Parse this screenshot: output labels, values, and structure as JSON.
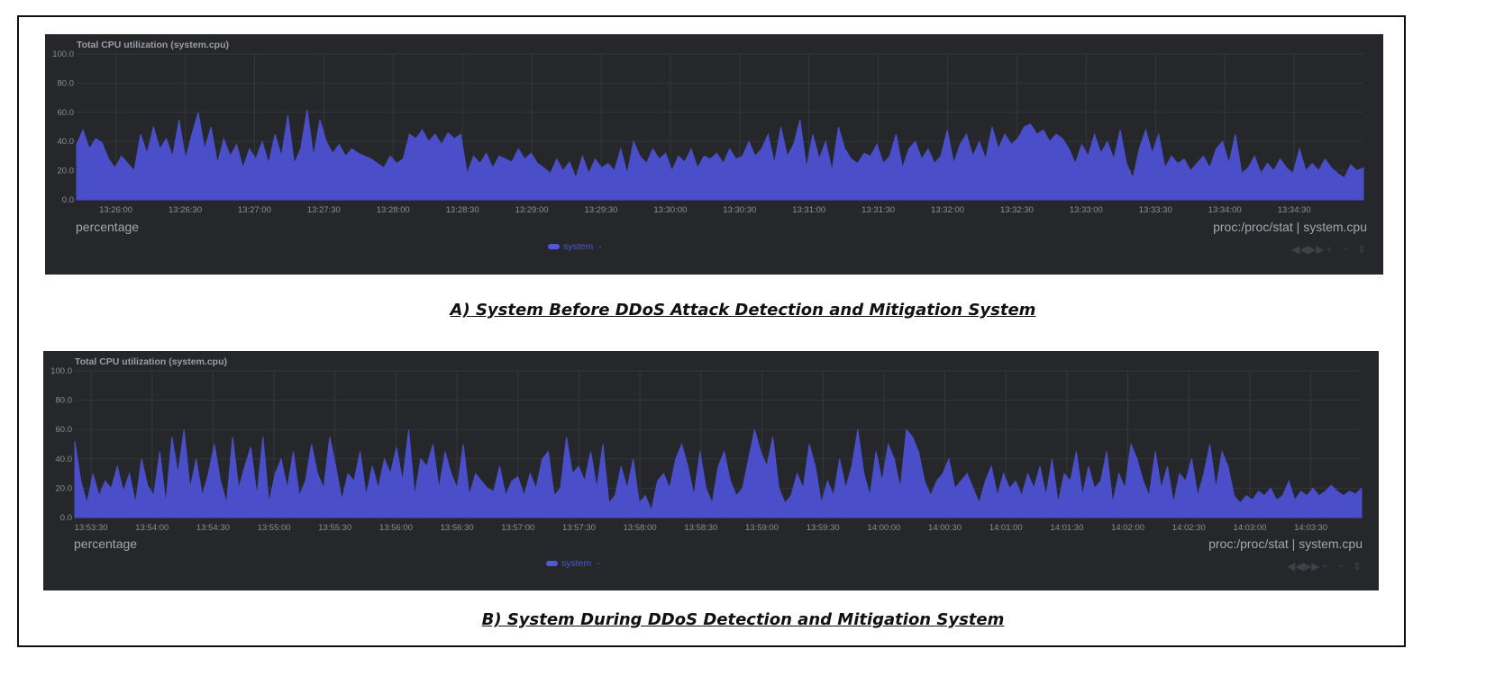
{
  "captions": {
    "a": "A)  System Before DDoS Attack Detection and Mitigation System",
    "b": "B) System During DDoS Detection and Mitigation System"
  },
  "colors": {
    "panel_bg": "#25272b",
    "series": "#4a4fc9",
    "text": "#a3a7ad",
    "grid": "#34373c"
  },
  "controls_icons": [
    "rewind-icon",
    "fast-forward-icon",
    "zoom-in-icon",
    "zoom-out-icon",
    "resize-icon"
  ],
  "chart_data": [
    {
      "type": "area",
      "title": "Total CPU utilization (system.cpu)",
      "units": "percentage",
      "context": "proc:/proc/stat | system.cpu",
      "ylim": [
        0,
        100
      ],
      "yticks": [
        "100.0",
        "80.0",
        "60.0",
        "40.0",
        "20.0",
        "0.0"
      ],
      "xticks": [
        "13:26:00",
        "13:26:30",
        "13:27:00",
        "13:27:30",
        "13:28:00",
        "13:28:30",
        "13:29:00",
        "13:29:30",
        "13:30:00",
        "13:30:30",
        "13:31:00",
        "13:31:30",
        "13:32:00",
        "13:32:30",
        "13:33:00",
        "13:33:30",
        "13:34:00",
        "13:34:30"
      ],
      "grid": true,
      "legend": "bottom-center",
      "series": [
        {
          "name": "system",
          "x_start": "13:25:43",
          "x_end": "13:35:00",
          "values": [
            38,
            48,
            35,
            42,
            39,
            28,
            22,
            30,
            25,
            20,
            45,
            32,
            50,
            35,
            42,
            30,
            55,
            28,
            45,
            60,
            35,
            50,
            25,
            42,
            30,
            38,
            22,
            35,
            28,
            40,
            25,
            45,
            30,
            58,
            25,
            35,
            62,
            30,
            55,
            40,
            32,
            38,
            30,
            35,
            32,
            30,
            28,
            25,
            22,
            30,
            25,
            28,
            45,
            42,
            48,
            40,
            45,
            38,
            46,
            42,
            45,
            18,
            30,
            25,
            32,
            22,
            30,
            28,
            26,
            35,
            28,
            32,
            25,
            22,
            18,
            28,
            20,
            26,
            15,
            30,
            18,
            28,
            22,
            25,
            20,
            35,
            18,
            40,
            30,
            25,
            35,
            28,
            32,
            20,
            30,
            26,
            35,
            22,
            30,
            28,
            32,
            25,
            35,
            28,
            30,
            40,
            30,
            35,
            45,
            25,
            50,
            30,
            38,
            55,
            22,
            45,
            28,
            40,
            20,
            50,
            35,
            28,
            25,
            32,
            30,
            38,
            25,
            30,
            45,
            22,
            35,
            40,
            28,
            35,
            25,
            30,
            48,
            25,
            38,
            45,
            30,
            40,
            28,
            50,
            35,
            45,
            38,
            42,
            50,
            52,
            45,
            48,
            40,
            45,
            42,
            35,
            25,
            38,
            30,
            45,
            32,
            40,
            28,
            48,
            25,
            15,
            35,
            48,
            32,
            45,
            22,
            30,
            25,
            28,
            20,
            25,
            30,
            22,
            35,
            40,
            25,
            45,
            18,
            22,
            30,
            18,
            25,
            20,
            28,
            22,
            18,
            35,
            20,
            25,
            20,
            28,
            22,
            18,
            15,
            24,
            20,
            22
          ],
          "color": "#4a4fc9"
        }
      ]
    },
    {
      "type": "area",
      "title": "Total CPU utilization (system.cpu)",
      "units": "percentage",
      "context": "proc:/proc/stat | system.cpu",
      "ylim": [
        0,
        100
      ],
      "yticks": [
        "100.0",
        "80.0",
        "60.0",
        "40.0",
        "20.0",
        "0.0"
      ],
      "xticks": [
        "13:53:30",
        "13:54:00",
        "13:54:30",
        "13:55:00",
        "13:55:30",
        "13:56:00",
        "13:56:30",
        "13:57:00",
        "13:57:30",
        "13:58:00",
        "13:58:30",
        "13:59:00",
        "13:59:30",
        "14:00:00",
        "14:00:30",
        "14:01:00",
        "14:01:30",
        "14:02:00",
        "14:02:30",
        "14:03:00",
        "14:03:30"
      ],
      "grid": true,
      "legend": "bottom-center",
      "series": [
        {
          "name": "system",
          "x_start": "13:53:22",
          "x_end": "14:03:55",
          "values": [
            52,
            25,
            10,
            30,
            15,
            25,
            20,
            35,
            18,
            30,
            10,
            40,
            22,
            15,
            45,
            10,
            55,
            30,
            60,
            20,
            40,
            15,
            30,
            50,
            25,
            10,
            55,
            20,
            35,
            48,
            15,
            55,
            10,
            30,
            40,
            20,
            45,
            15,
            25,
            50,
            30,
            20,
            55,
            35,
            12,
            30,
            25,
            45,
            15,
            35,
            20,
            40,
            30,
            48,
            25,
            60,
            15,
            40,
            35,
            50,
            20,
            45,
            30,
            20,
            50,
            15,
            30,
            25,
            20,
            18,
            35,
            15,
            25,
            28,
            15,
            30,
            20,
            40,
            45,
            15,
            20,
            55,
            30,
            35,
            25,
            45,
            20,
            50,
            10,
            15,
            35,
            20,
            40,
            10,
            15,
            5,
            25,
            30,
            20,
            40,
            50,
            35,
            15,
            45,
            20,
            10,
            35,
            45,
            25,
            15,
            20,
            40,
            60,
            45,
            35,
            55,
            20,
            10,
            15,
            30,
            20,
            50,
            35,
            10,
            25,
            15,
            40,
            20,
            35,
            60,
            30,
            15,
            45,
            25,
            50,
            40,
            20,
            60,
            55,
            45,
            25,
            15,
            25,
            30,
            40,
            20,
            25,
            30,
            20,
            10,
            25,
            35,
            15,
            30,
            20,
            25,
            15,
            30,
            20,
            35,
            15,
            40,
            10,
            30,
            25,
            45,
            15,
            35,
            20,
            25,
            45,
            10,
            30,
            20,
            50,
            40,
            25,
            15,
            45,
            20,
            35,
            10,
            30,
            25,
            40,
            15,
            30,
            50,
            20,
            45,
            35,
            15,
            10,
            15,
            12,
            18,
            15,
            20,
            12,
            15,
            25,
            12,
            18,
            15,
            20,
            15,
            18,
            22,
            18,
            15,
            18,
            16,
            20
          ],
          "color": "#4a4fc9"
        }
      ]
    }
  ]
}
